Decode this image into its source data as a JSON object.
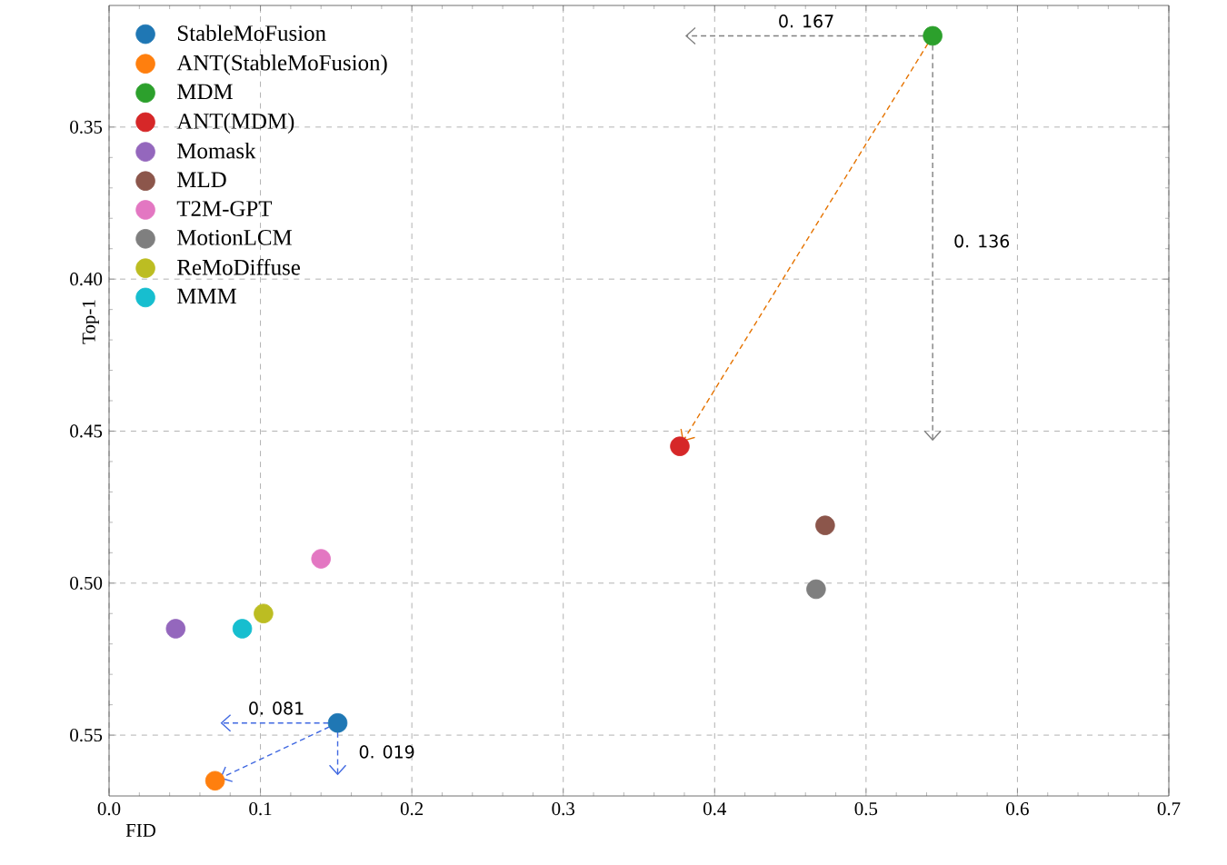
{
  "chart_data": {
    "type": "scatter",
    "xlabel": "FID",
    "ylabel": "Top-1",
    "xlim": [
      0,
      0.7
    ],
    "ylim": [
      0.57,
      0.31
    ],
    "xticks": [
      {
        "value": 0,
        "label": "0.0"
      },
      {
        "value": 0.1,
        "label": "0.1"
      },
      {
        "value": 0.2,
        "label": "0.2"
      },
      {
        "value": 0.3,
        "label": "0.3"
      },
      {
        "value": 0.4,
        "label": "0.4"
      },
      {
        "value": 0.5,
        "label": "0.5"
      },
      {
        "value": 0.6,
        "label": "0.6"
      },
      {
        "value": 0.7,
        "label": "0.7"
      }
    ],
    "yticks": [
      {
        "value": 0.35,
        "label": "0.35"
      },
      {
        "value": 0.4,
        "label": "0.40"
      },
      {
        "value": 0.45,
        "label": "0.45"
      },
      {
        "value": 0.5,
        "label": "0.50"
      },
      {
        "value": 0.55,
        "label": "0.55"
      }
    ],
    "grid": true,
    "legend": "top left",
    "series": [
      {
        "name": "StableMoFusion",
        "color": "#1f77b4",
        "x": [
          0.151
        ],
        "values": [
          0.546
        ]
      },
      {
        "name": "ANT(StableMoFusion)",
        "color": "#ff7f0e",
        "x": [
          0.07
        ],
        "values": [
          0.565
        ]
      },
      {
        "name": "MDM",
        "color": "#2ca02c",
        "x": [
          0.544
        ],
        "values": [
          0.32
        ]
      },
      {
        "name": "ANT(MDM)",
        "color": "#d62728",
        "x": [
          0.377
        ],
        "values": [
          0.455
        ]
      },
      {
        "name": "Momask",
        "color": "#9467bd",
        "x": [
          0.044
        ],
        "values": [
          0.515
        ]
      },
      {
        "name": "MLD",
        "color": "#8c564b",
        "x": [
          0.473
        ],
        "values": [
          0.481
        ]
      },
      {
        "name": "T2M-GPT",
        "color": "#e377c2",
        "x": [
          0.14
        ],
        "values": [
          0.492
        ]
      },
      {
        "name": "MotionLCM",
        "color": "#7f7f7f",
        "x": [
          0.467
        ],
        "values": [
          0.502
        ]
      },
      {
        "name": "ReMoDiffuse",
        "color": "#bcbd22",
        "x": [
          0.102
        ],
        "values": [
          0.51
        ]
      },
      {
        "name": "MMM",
        "color": "#17becf",
        "x": [
          0.088
        ],
        "values": [
          0.515
        ]
      }
    ],
    "annotations": [
      "0. 167",
      "0. 136",
      "0. 081",
      "0. 019"
    ]
  }
}
